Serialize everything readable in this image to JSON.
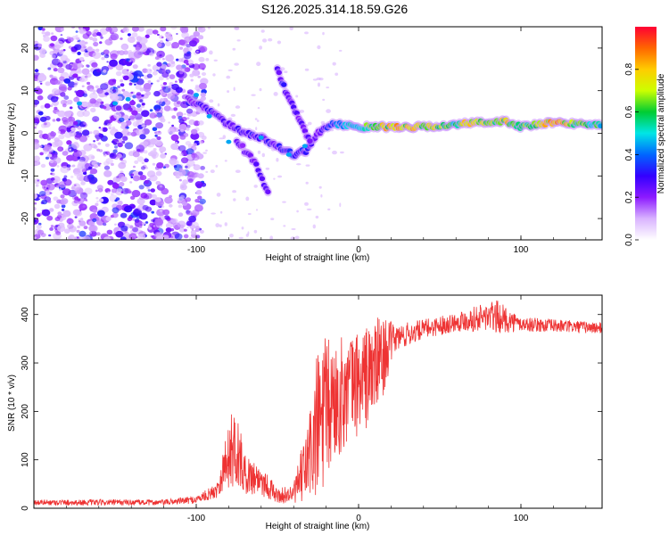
{
  "figure_title": "S126.2025.314.18.59.G26",
  "chart_data": [
    {
      "type": "heatmap",
      "name": "spectrogram",
      "xlabel": "Height of straight line (km)",
      "ylabel": "Frequency (Hz)",
      "xlim": [
        -200,
        150
      ],
      "ylim": [
        -25,
        25
      ],
      "xticks": [
        -100,
        0,
        100
      ],
      "yticks": [
        -20,
        -10,
        0,
        10,
        20
      ],
      "colorbar": {
        "label": "Normalized spectral amplitude",
        "range": [
          0,
          1
        ],
        "ticks": [
          0,
          0.2,
          0.4,
          0.6,
          0.8
        ],
        "tick_labels": [
          "0.0",
          "0.2",
          "0.4",
          "0.6",
          "0.8"
        ],
        "colormap": [
          "#ffffff",
          "#d9b3ff",
          "#8c1aff",
          "#3300ff",
          "#0066ff",
          "#00e6e6",
          "#00cc33",
          "#ccff00",
          "#ffcc00",
          "#ff6600",
          "#ff0033"
        ]
      },
      "main_ridge": [
        {
          "x": -105,
          "y": 8,
          "a": 0.25
        },
        {
          "x": -90,
          "y": 5,
          "a": 0.3
        },
        {
          "x": -80,
          "y": 2,
          "a": 0.25
        },
        {
          "x": -70,
          "y": 0,
          "a": 0.3
        },
        {
          "x": -60,
          "y": -1,
          "a": 0.3
        },
        {
          "x": -50,
          "y": -3,
          "a": 0.3
        },
        {
          "x": -40,
          "y": -5,
          "a": 0.35
        },
        {
          "x": -32,
          "y": -4,
          "a": 0.3
        },
        {
          "x": -25,
          "y": 0,
          "a": 0.25
        },
        {
          "x": -18,
          "y": 2,
          "a": 0.35
        },
        {
          "x": -10,
          "y": 2,
          "a": 0.5
        },
        {
          "x": 0,
          "y": 1.5,
          "a": 0.6
        },
        {
          "x": 20,
          "y": 1.5,
          "a": 0.8
        },
        {
          "x": 40,
          "y": 1.5,
          "a": 0.75
        },
        {
          "x": 60,
          "y": 2,
          "a": 0.6
        },
        {
          "x": 70,
          "y": 2.5,
          "a": 0.85
        },
        {
          "x": 80,
          "y": 2.5,
          "a": 0.6
        },
        {
          "x": 90,
          "y": 3,
          "a": 0.8
        },
        {
          "x": 100,
          "y": 1.5,
          "a": 0.6
        },
        {
          "x": 120,
          "y": 2.5,
          "a": 0.85
        },
        {
          "x": 150,
          "y": 2,
          "a": 0.55
        }
      ],
      "secondary_ridge": [
        {
          "x": -50,
          "y": 15,
          "a": 0.3
        },
        {
          "x": -45,
          "y": 10,
          "a": 0.3
        },
        {
          "x": -40,
          "y": 6,
          "a": 0.25
        },
        {
          "x": -35,
          "y": 2,
          "a": 0.25
        },
        {
          "x": -30,
          "y": -2,
          "a": 0.25
        }
      ],
      "descending_branch": [
        {
          "x": -75,
          "y": -2,
          "a": 0.25
        },
        {
          "x": -65,
          "y": -6,
          "a": 0.25
        },
        {
          "x": -58,
          "y": -12,
          "a": 0.3
        },
        {
          "x": -55,
          "y": -14,
          "a": 0.25
        }
      ]
    },
    {
      "type": "line",
      "name": "snr",
      "xlabel": "Height of straight line (km)",
      "ylabel": "SNR (10 * v/v)",
      "xlim": [
        -200,
        150
      ],
      "ylim": [
        0,
        440
      ],
      "xticks": [
        -100,
        0,
        100
      ],
      "yticks": [
        0,
        100,
        200,
        300,
        400
      ],
      "color": "#ee3333",
      "envelope": [
        {
          "x": -200,
          "mean": 12,
          "amp": 6
        },
        {
          "x": -120,
          "mean": 12,
          "amp": 6
        },
        {
          "x": -100,
          "mean": 18,
          "amp": 8
        },
        {
          "x": -88,
          "mean": 35,
          "amp": 15
        },
        {
          "x": -80,
          "mean": 110,
          "amp": 70
        },
        {
          "x": -76,
          "mean": 130,
          "amp": 90
        },
        {
          "x": -70,
          "mean": 70,
          "amp": 40
        },
        {
          "x": -60,
          "mean": 60,
          "amp": 35
        },
        {
          "x": -50,
          "mean": 25,
          "amp": 15
        },
        {
          "x": -40,
          "mean": 30,
          "amp": 20
        },
        {
          "x": -32,
          "mean": 90,
          "amp": 80
        },
        {
          "x": -24,
          "mean": 180,
          "amp": 180
        },
        {
          "x": -15,
          "mean": 220,
          "amp": 130
        },
        {
          "x": -5,
          "mean": 250,
          "amp": 110
        },
        {
          "x": 5,
          "mean": 270,
          "amp": 110
        },
        {
          "x": 14,
          "mean": 310,
          "amp": 90
        },
        {
          "x": 22,
          "mean": 350,
          "amp": 30
        },
        {
          "x": 40,
          "mean": 370,
          "amp": 20
        },
        {
          "x": 60,
          "mean": 385,
          "amp": 20
        },
        {
          "x": 78,
          "mean": 395,
          "amp": 30
        },
        {
          "x": 85,
          "mean": 395,
          "amp": 35
        },
        {
          "x": 100,
          "mean": 380,
          "amp": 15
        },
        {
          "x": 150,
          "mean": 372,
          "amp": 12
        }
      ]
    }
  ]
}
